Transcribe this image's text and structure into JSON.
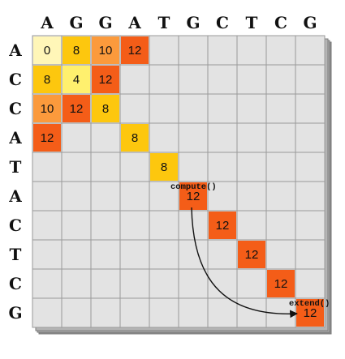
{
  "col_headers": [
    "A",
    "G",
    "G",
    "A",
    "T",
    "G",
    "C",
    "T",
    "C",
    "G"
  ],
  "row_headers": [
    "A",
    "C",
    "C",
    "A",
    "T",
    "A",
    "C",
    "T",
    "C",
    "G"
  ],
  "cells": [
    {
      "row": 0,
      "col": 0,
      "value": "0",
      "color": "#fff6b8"
    },
    {
      "row": 0,
      "col": 1,
      "value": "8",
      "color": "#fdc70e"
    },
    {
      "row": 0,
      "col": 2,
      "value": "10",
      "color": "#fb9a3c"
    },
    {
      "row": 0,
      "col": 3,
      "value": "12",
      "color": "#f45d18"
    },
    {
      "row": 1,
      "col": 0,
      "value": "8",
      "color": "#fdc70e"
    },
    {
      "row": 1,
      "col": 1,
      "value": "4",
      "color": "#fff06e"
    },
    {
      "row": 1,
      "col": 2,
      "value": "12",
      "color": "#f45d18"
    },
    {
      "row": 2,
      "col": 0,
      "value": "10",
      "color": "#fb9a3c"
    },
    {
      "row": 2,
      "col": 1,
      "value": "12",
      "color": "#f45d18"
    },
    {
      "row": 2,
      "col": 2,
      "value": "8",
      "color": "#fdc70e"
    },
    {
      "row": 3,
      "col": 0,
      "value": "12",
      "color": "#f45d18"
    },
    {
      "row": 3,
      "col": 3,
      "value": "8",
      "color": "#fdc70e"
    },
    {
      "row": 4,
      "col": 4,
      "value": "8",
      "color": "#fdc70e"
    },
    {
      "row": 5,
      "col": 5,
      "value": "12",
      "color": "#f45d18"
    },
    {
      "row": 6,
      "col": 6,
      "value": "12",
      "color": "#f45d18"
    },
    {
      "row": 7,
      "col": 7,
      "value": "12",
      "color": "#f45d18"
    },
    {
      "row": 8,
      "col": 8,
      "value": "12",
      "color": "#f45d18"
    },
    {
      "row": 9,
      "col": 9,
      "value": "12",
      "color": "#f45d18"
    }
  ],
  "annotations": {
    "compute": {
      "label": "compute()",
      "row": 5,
      "col": 5
    },
    "extend": {
      "label": "extend()",
      "row": 9,
      "col": 9
    }
  },
  "colors": {
    "empty_cell": "#e3e3e3",
    "grid_line": "#9a9a9a",
    "shadow": "#7a7a7a"
  }
}
